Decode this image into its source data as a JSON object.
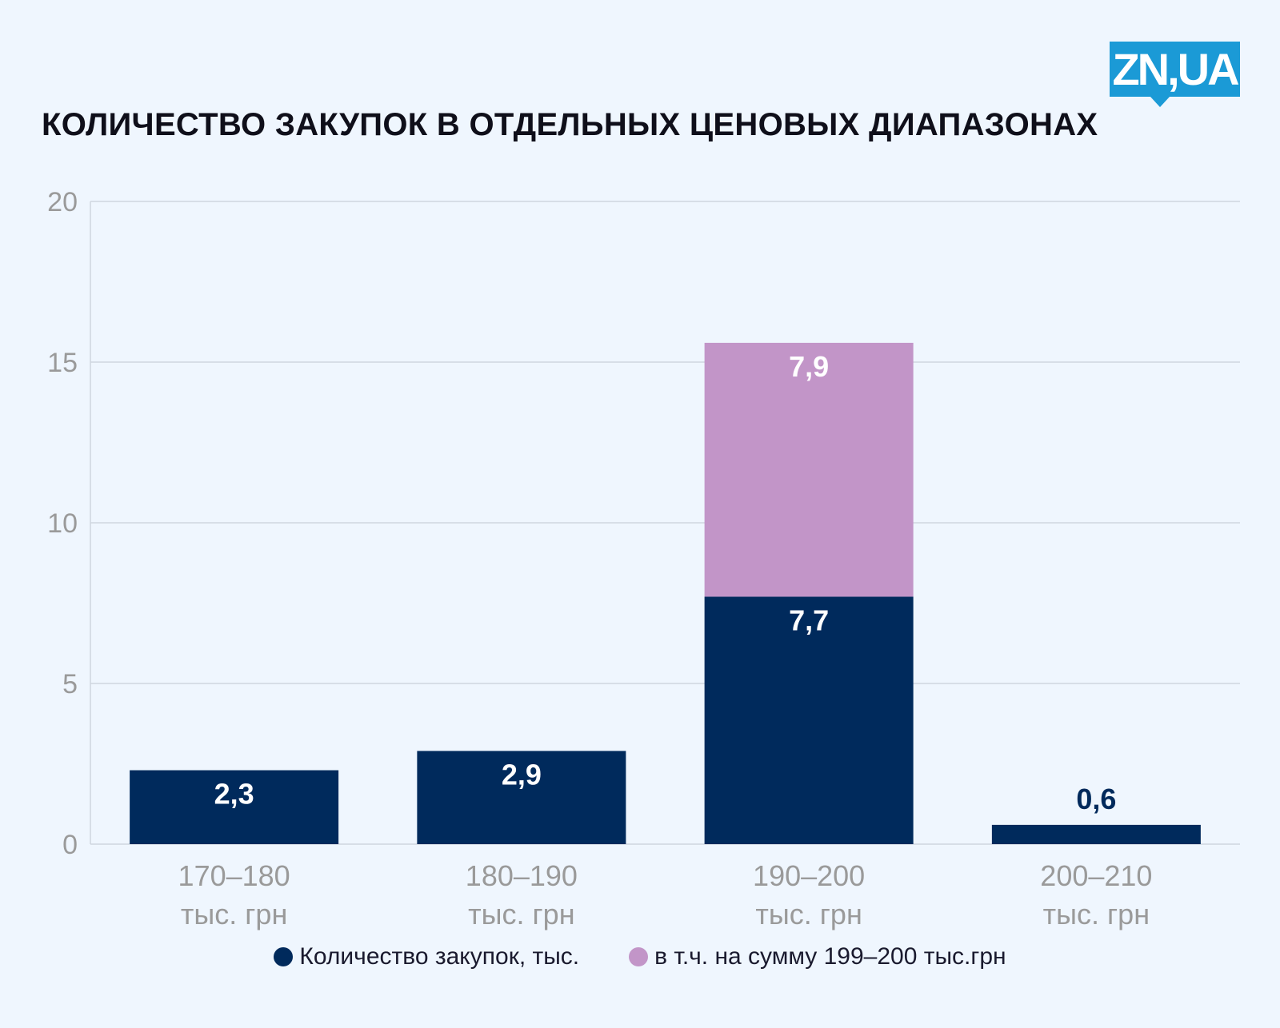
{
  "header": {
    "logo_text": "ZN,UA",
    "title": "КОЛИЧЕСТВО ЗАКУПОК В ОТДЕЛЬНЫХ ЦЕНОВЫХ ДИАПАЗОНАХ"
  },
  "colors": {
    "background": "#eff6fe",
    "series_main": "#002a5c",
    "series_sub": "#c295c8",
    "logo": "#1b9ad6",
    "gridline": "#cfd6df",
    "tick_label": "#9a9a9a"
  },
  "chart_data": {
    "type": "bar",
    "title": "КОЛИЧЕСТВО ЗАКУПОК В ОТДЕЛЬНЫХ ЦЕНОВЫХ ДИАПАЗОНАХ",
    "categories": [
      [
        "170–180",
        "тыс. грн"
      ],
      [
        "180–190",
        "тыс. грн"
      ],
      [
        "190–200",
        "тыс. грн"
      ],
      [
        "200–210",
        "тыс. грн"
      ]
    ],
    "series": [
      {
        "name": "Количество закупок, тыс.",
        "values": [
          2.3,
          2.9,
          7.7,
          0.6
        ],
        "labels": [
          "2,3",
          "2,9",
          "7,7",
          "0,6"
        ]
      },
      {
        "name": "в т.ч. на сумму 199–200 тыс.грн",
        "values": [
          0,
          0,
          7.9,
          0
        ],
        "labels": [
          "",
          "",
          "7,9",
          ""
        ]
      }
    ],
    "stacked": true,
    "ylim": [
      0,
      20
    ],
    "yticks": [
      "0",
      "5",
      "10",
      "15",
      "20"
    ],
    "grid": true,
    "legend_position": "bottom"
  }
}
